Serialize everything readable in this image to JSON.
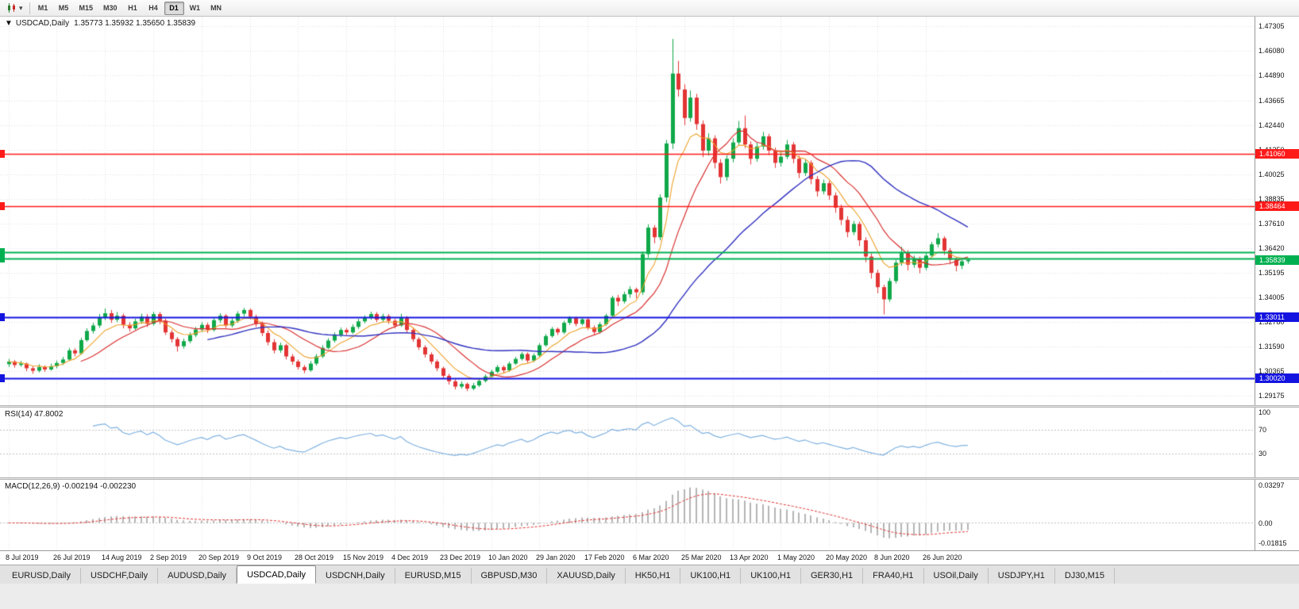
{
  "icons": {
    "dropdown_arrow": "▾",
    "title_arrow": "▼"
  },
  "toolbar": {
    "timeframes": [
      "M1",
      "M5",
      "M15",
      "M30",
      "H1",
      "H4",
      "D1",
      "W1",
      "MN"
    ],
    "active_timeframe": "D1"
  },
  "chart": {
    "symbol": "USDCAD,Daily",
    "ohlc": "1.35773 1.35932 1.35650 1.35839",
    "y_range": [
      1.29175,
      1.47305
    ],
    "price_axis": [
      "1.47305",
      "1.46080",
      "1.44890",
      "1.43665",
      "1.42440",
      "1.41250",
      "1.40025",
      "1.38835",
      "1.37610",
      "1.36420",
      "1.35195",
      "1.34005",
      "1.32780",
      "1.31590",
      "1.30365",
      "1.29175"
    ],
    "colors": {
      "up": "#10a84a",
      "down": "#e33434"
    },
    "ma": {
      "fast": {
        "period": 7,
        "color": "#eda128"
      },
      "mid": {
        "period": 13,
        "color": "#d93030"
      },
      "slow": {
        "period": 34,
        "color": "#3030c0"
      }
    },
    "hlines": [
      {
        "price": 1.4106,
        "color": "#ff1a1a",
        "width": 1.5,
        "label": "1.41060"
      },
      {
        "price": 1.38464,
        "color": "#ff1a1a",
        "width": 1.5,
        "label": "1.38464"
      },
      {
        "price": 1.36212,
        "color": "#00b050",
        "width": 2,
        "label": ""
      },
      {
        "price": 1.35919,
        "color": "#00b050",
        "width": 2,
        "label": ""
      },
      {
        "price": 1.33011,
        "color": "#1414e0",
        "width": 2,
        "label": "1.33011"
      },
      {
        "price": 1.3002,
        "color": "#1414e0",
        "width": 2,
        "label": "1.30020"
      }
    ],
    "price_tag": {
      "value": "1.35839",
      "color": "#00b050"
    }
  },
  "chart_data": {
    "type": "candlestick",
    "symbol": "USDCAD",
    "timeframe": "Daily",
    "label_every": 8,
    "date_labels": [
      "8 Jul 2019",
      "26 Jul 2019",
      "14 Aug 2019",
      "2 Sep 2019",
      "20 Sep 2019",
      "9 Oct 2019",
      "28 Oct 2019",
      "15 Nov 2019",
      "4 Dec 2019",
      "23 Dec 2019",
      "10 Jan 2020",
      "29 Jan 2020",
      "17 Feb 2020",
      "6 Mar 2020",
      "25 Mar 2020",
      "13 Apr 2020",
      "1 May 2020",
      "20 May 2020",
      "8 Jun 2020",
      "26 Jun 2020"
    ],
    "candles": [
      [
        1.3072,
        1.3098,
        1.3058,
        1.3085
      ],
      [
        1.3085,
        1.3092,
        1.3055,
        1.3068
      ],
      [
        1.3068,
        1.3088,
        1.306,
        1.3075
      ],
      [
        1.3075,
        1.308,
        1.3038,
        1.3052
      ],
      [
        1.3052,
        1.3062,
        1.3025,
        1.304
      ],
      [
        1.304,
        1.3072,
        1.3032,
        1.3058
      ],
      [
        1.3058,
        1.3066,
        1.3035,
        1.3046
      ],
      [
        1.3046,
        1.3075,
        1.304,
        1.3062
      ],
      [
        1.3062,
        1.309,
        1.3052,
        1.3078
      ],
      [
        1.3078,
        1.3108,
        1.3068,
        1.3095
      ],
      [
        1.3095,
        1.3152,
        1.3088,
        1.314
      ],
      [
        1.314,
        1.315,
        1.311,
        1.3125
      ],
      [
        1.3125,
        1.3202,
        1.3118,
        1.319
      ],
      [
        1.319,
        1.3248,
        1.3182,
        1.3235
      ],
      [
        1.3235,
        1.3275,
        1.3222,
        1.3262
      ],
      [
        1.3262,
        1.3318,
        1.325,
        1.33
      ],
      [
        1.33,
        1.3345,
        1.3288,
        1.3322
      ],
      [
        1.3322,
        1.3338,
        1.3275,
        1.329
      ],
      [
        1.329,
        1.3328,
        1.3278,
        1.331
      ],
      [
        1.331,
        1.332,
        1.3248,
        1.3265
      ],
      [
        1.3265,
        1.3278,
        1.3232,
        1.3248
      ],
      [
        1.3248,
        1.3295,
        1.324,
        1.3282
      ],
      [
        1.3282,
        1.332,
        1.327,
        1.3305
      ],
      [
        1.3305,
        1.3318,
        1.3255,
        1.327
      ],
      [
        1.327,
        1.333,
        1.3262,
        1.3318
      ],
      [
        1.3318,
        1.3328,
        1.3268,
        1.3285
      ],
      [
        1.3285,
        1.3295,
        1.3215,
        1.3228
      ],
      [
        1.3228,
        1.324,
        1.3178,
        1.3195
      ],
      [
        1.3195,
        1.3205,
        1.3134,
        1.316
      ],
      [
        1.316,
        1.3198,
        1.3148,
        1.3185
      ],
      [
        1.3185,
        1.3228,
        1.3175,
        1.3215
      ],
      [
        1.3215,
        1.3255,
        1.3205,
        1.3242
      ],
      [
        1.3242,
        1.3278,
        1.323,
        1.3265
      ],
      [
        1.3265,
        1.3275,
        1.3225,
        1.324
      ],
      [
        1.324,
        1.3298,
        1.3232,
        1.3288
      ],
      [
        1.3288,
        1.3322,
        1.3275,
        1.331
      ],
      [
        1.331,
        1.3318,
        1.325,
        1.3262
      ],
      [
        1.3262,
        1.3298,
        1.3252,
        1.3285
      ],
      [
        1.3285,
        1.3332,
        1.3275,
        1.332
      ],
      [
        1.332,
        1.3348,
        1.3305,
        1.3338
      ],
      [
        1.3338,
        1.3345,
        1.3292,
        1.3305
      ],
      [
        1.3305,
        1.3315,
        1.3255,
        1.327
      ],
      [
        1.327,
        1.3282,
        1.321,
        1.3225
      ],
      [
        1.3225,
        1.3238,
        1.3165,
        1.318
      ],
      [
        1.318,
        1.3195,
        1.3125,
        1.314
      ],
      [
        1.314,
        1.3178,
        1.3128,
        1.3165
      ],
      [
        1.3165,
        1.3172,
        1.3095,
        1.311
      ],
      [
        1.311,
        1.3122,
        1.307,
        1.3085
      ],
      [
        1.3085,
        1.3095,
        1.3045,
        1.3058
      ],
      [
        1.3058,
        1.3068,
        1.3028,
        1.3042
      ],
      [
        1.3042,
        1.3088,
        1.3035,
        1.3075
      ],
      [
        1.3075,
        1.3122,
        1.3065,
        1.311
      ],
      [
        1.311,
        1.3165,
        1.3102,
        1.3152
      ],
      [
        1.3152,
        1.32,
        1.3145,
        1.3188
      ],
      [
        1.3188,
        1.3228,
        1.3178,
        1.3215
      ],
      [
        1.3215,
        1.3252,
        1.3205,
        1.324
      ],
      [
        1.324,
        1.325,
        1.3215,
        1.3228
      ],
      [
        1.3228,
        1.3268,
        1.322,
        1.3255
      ],
      [
        1.3255,
        1.3295,
        1.3245,
        1.3282
      ],
      [
        1.3282,
        1.3312,
        1.3272,
        1.33
      ],
      [
        1.33,
        1.333,
        1.329,
        1.3318
      ],
      [
        1.3318,
        1.3328,
        1.3278,
        1.329
      ],
      [
        1.329,
        1.332,
        1.328,
        1.3308
      ],
      [
        1.3308,
        1.3318,
        1.327,
        1.3285
      ],
      [
        1.3285,
        1.3295,
        1.3248,
        1.3262
      ],
      [
        1.3262,
        1.332,
        1.3255,
        1.33
      ],
      [
        1.33,
        1.3308,
        1.3228,
        1.324
      ],
      [
        1.324,
        1.3252,
        1.3182,
        1.3195
      ],
      [
        1.3195,
        1.3205,
        1.3142,
        1.3155
      ],
      [
        1.3155,
        1.3165,
        1.3105,
        1.312
      ],
      [
        1.312,
        1.313,
        1.3072,
        1.3085
      ],
      [
        1.3085,
        1.3095,
        1.3038,
        1.3052
      ],
      [
        1.3052,
        1.306,
        1.3,
        1.3015
      ],
      [
        1.3015,
        1.3025,
        1.2972,
        1.2988
      ],
      [
        1.2988,
        1.2998,
        1.2948,
        1.2962
      ],
      [
        1.2962,
        1.2988,
        1.2952,
        1.2975
      ],
      [
        1.2975,
        1.2982,
        1.294,
        1.2952
      ],
      [
        1.2952,
        1.298,
        1.2944,
        1.2968
      ],
      [
        1.2968,
        1.3002,
        1.296,
        1.299
      ],
      [
        1.299,
        1.3022,
        1.2982,
        1.3012
      ],
      [
        1.3012,
        1.3045,
        1.3004,
        1.3035
      ],
      [
        1.3035,
        1.3068,
        1.3028,
        1.3058
      ],
      [
        1.3058,
        1.3066,
        1.303,
        1.3042
      ],
      [
        1.3042,
        1.3085,
        1.3035,
        1.3075
      ],
      [
        1.3075,
        1.3108,
        1.3068,
        1.3098
      ],
      [
        1.3098,
        1.3132,
        1.309,
        1.3122
      ],
      [
        1.3122,
        1.313,
        1.3078,
        1.309
      ],
      [
        1.309,
        1.3125,
        1.3082,
        1.3115
      ],
      [
        1.3115,
        1.3175,
        1.3108,
        1.3165
      ],
      [
        1.3165,
        1.322,
        1.3158,
        1.321
      ],
      [
        1.321,
        1.3255,
        1.3202,
        1.3245
      ],
      [
        1.3245,
        1.3252,
        1.3215,
        1.3228
      ],
      [
        1.3228,
        1.3285,
        1.322,
        1.3275
      ],
      [
        1.3275,
        1.3308,
        1.3265,
        1.3298
      ],
      [
        1.3298,
        1.3305,
        1.3258,
        1.327
      ],
      [
        1.327,
        1.3302,
        1.3262,
        1.3292
      ],
      [
        1.3292,
        1.33,
        1.324,
        1.3252
      ],
      [
        1.3252,
        1.3262,
        1.3218,
        1.323
      ],
      [
        1.323,
        1.3278,
        1.3222,
        1.3268
      ],
      [
        1.3268,
        1.332,
        1.326,
        1.331
      ],
      [
        1.331,
        1.3408,
        1.3302,
        1.3398
      ],
      [
        1.3398,
        1.3412,
        1.3358,
        1.338
      ],
      [
        1.338,
        1.3428,
        1.337,
        1.3415
      ],
      [
        1.3415,
        1.3455,
        1.3398,
        1.344
      ],
      [
        1.344,
        1.3448,
        1.3395,
        1.3425
      ],
      [
        1.3425,
        1.3625,
        1.3412,
        1.3612
      ],
      [
        1.3612,
        1.3758,
        1.3595,
        1.3742
      ],
      [
        1.3742,
        1.3755,
        1.3665,
        1.3695
      ],
      [
        1.3695,
        1.3905,
        1.368,
        1.389
      ],
      [
        1.389,
        1.4172,
        1.3868,
        1.4155
      ],
      [
        1.4155,
        1.4668,
        1.4128,
        1.4498
      ],
      [
        1.4498,
        1.456,
        1.4385,
        1.442
      ],
      [
        1.442,
        1.4445,
        1.4245,
        1.428
      ],
      [
        1.428,
        1.4415,
        1.4262,
        1.438
      ],
      [
        1.438,
        1.4398,
        1.4222,
        1.425
      ],
      [
        1.425,
        1.4268,
        1.4088,
        1.412
      ],
      [
        1.412,
        1.4205,
        1.4095,
        1.418
      ],
      [
        1.418,
        1.4195,
        1.4032,
        1.406
      ],
      [
        1.406,
        1.4078,
        1.3958,
        1.399
      ],
      [
        1.399,
        1.4098,
        1.3972,
        1.408
      ],
      [
        1.408,
        1.418,
        1.4062,
        1.416
      ],
      [
        1.416,
        1.4265,
        1.4148,
        1.423
      ],
      [
        1.423,
        1.4292,
        1.4132,
        1.415
      ],
      [
        1.415,
        1.4165,
        1.4052,
        1.408
      ],
      [
        1.408,
        1.4158,
        1.4065,
        1.414
      ],
      [
        1.414,
        1.4212,
        1.4125,
        1.419
      ],
      [
        1.419,
        1.4202,
        1.4098,
        1.412
      ],
      [
        1.412,
        1.4135,
        1.4035,
        1.406
      ],
      [
        1.406,
        1.4112,
        1.4042,
        1.409
      ],
      [
        1.409,
        1.4172,
        1.4078,
        1.415
      ],
      [
        1.415,
        1.4162,
        1.4058,
        1.408
      ],
      [
        1.408,
        1.4095,
        1.3985,
        1.401
      ],
      [
        1.401,
        1.4078,
        1.3995,
        1.406
      ],
      [
        1.406,
        1.4072,
        1.3955,
        1.398
      ],
      [
        1.398,
        1.3995,
        1.3895,
        1.392
      ],
      [
        1.392,
        1.3978,
        1.3905,
        1.396
      ],
      [
        1.396,
        1.3972,
        1.3878,
        1.39
      ],
      [
        1.39,
        1.3915,
        1.3815,
        1.384
      ],
      [
        1.384,
        1.3855,
        1.3755,
        1.378
      ],
      [
        1.378,
        1.3798,
        1.3695,
        1.372
      ],
      [
        1.372,
        1.3775,
        1.3705,
        1.376
      ],
      [
        1.376,
        1.3772,
        1.3652,
        1.368
      ],
      [
        1.368,
        1.3695,
        1.3572,
        1.36
      ],
      [
        1.36,
        1.3615,
        1.3492,
        1.352
      ],
      [
        1.352,
        1.3535,
        1.342,
        1.345
      ],
      [
        1.345,
        1.3462,
        1.3316,
        1.339
      ],
      [
        1.339,
        1.3495,
        1.3378,
        1.348
      ],
      [
        1.348,
        1.3585,
        1.3468,
        1.357
      ],
      [
        1.357,
        1.3648,
        1.3555,
        1.362
      ],
      [
        1.362,
        1.3632,
        1.3532,
        1.356
      ],
      [
        1.356,
        1.3605,
        1.3545,
        1.359
      ],
      [
        1.359,
        1.36,
        1.3518,
        1.3545
      ],
      [
        1.3545,
        1.3618,
        1.3532,
        1.3605
      ],
      [
        1.3605,
        1.3672,
        1.3595,
        1.366
      ],
      [
        1.366,
        1.3715,
        1.3645,
        1.369
      ],
      [
        1.369,
        1.37,
        1.3608,
        1.363
      ],
      [
        1.363,
        1.3642,
        1.3562,
        1.3585
      ],
      [
        1.3585,
        1.3598,
        1.3528,
        1.3555
      ],
      [
        1.3555,
        1.3592,
        1.3538,
        1.3577
      ],
      [
        1.3577,
        1.3593,
        1.3565,
        1.3584
      ]
    ]
  },
  "rsi": {
    "label": "RSI(14) 47.8002",
    "period": 14,
    "value": 47.8002,
    "levels": [
      100,
      70,
      30
    ],
    "color": "#7fb1e0"
  },
  "macd": {
    "label": "MACD(12,26,9) -0.002194 -0.002230",
    "fast": 12,
    "slow": 26,
    "signal_period": 9,
    "value": -0.002194,
    "signal_value": -0.00223,
    "range": [
      -0.01815,
      0.03297
    ],
    "axis_labels": [
      "0.03297",
      "0.00",
      "-0.01815"
    ],
    "hist_color": "#b4b4b4",
    "signal_color": "#e03030"
  },
  "tabs": {
    "active": "USDCAD,Daily",
    "items": [
      "EURUSD,Daily",
      "USDCHF,Daily",
      "AUDUSD,Daily",
      "USDCAD,Daily",
      "USDCNH,Daily",
      "EURUSD,M15",
      "GBPUSD,M30",
      "XAUUSD,Daily",
      "HK50,H1",
      "UK100,H1",
      "UK100,H1",
      "GER30,H1",
      "FRA40,H1",
      "USOil,Daily",
      "USDJPY,H1",
      "DJ30,M15"
    ]
  }
}
